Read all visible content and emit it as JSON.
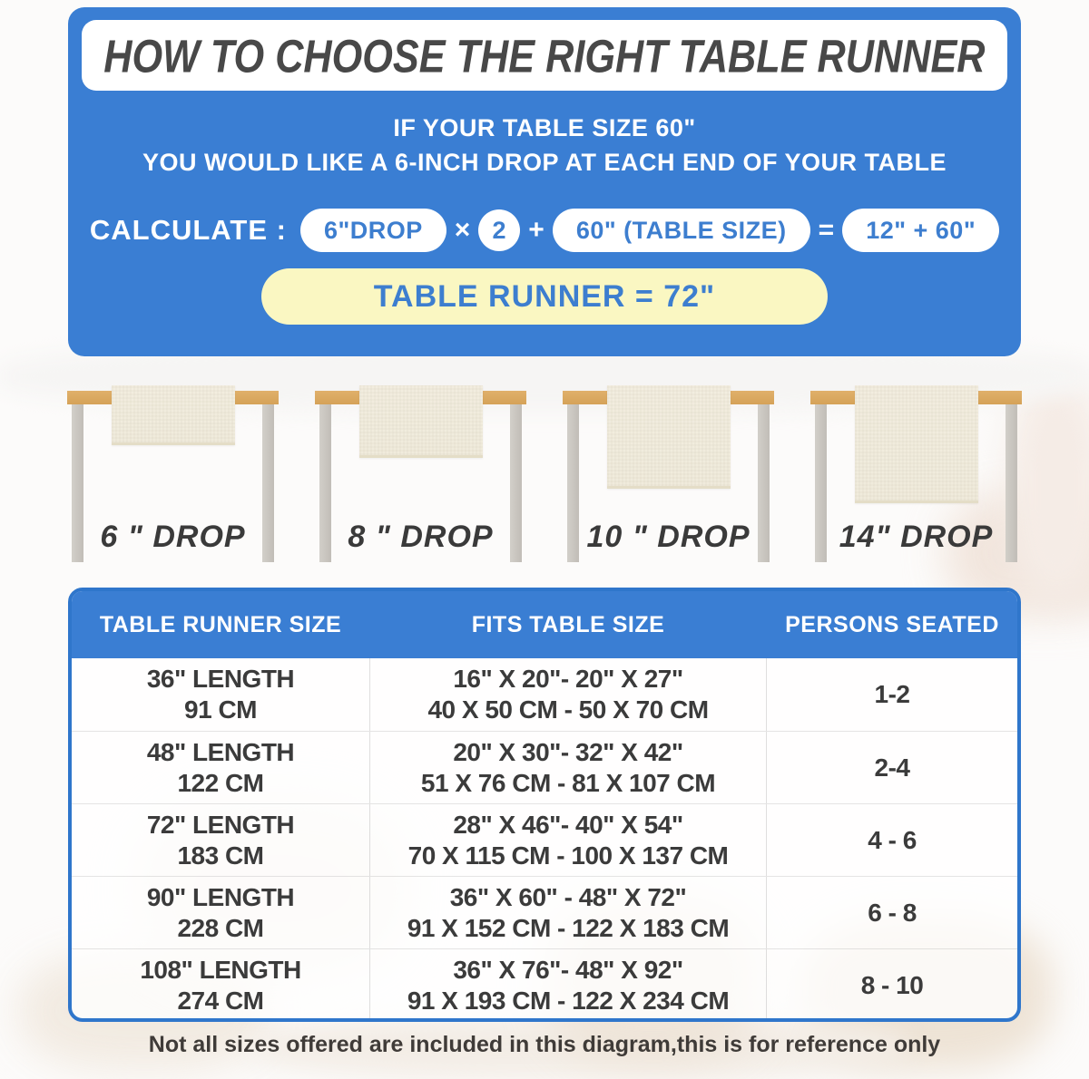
{
  "colors": {
    "panel_blue": "#3A7ED3",
    "pill_text": "#3D7ECF",
    "result_bg": "#FAF7C2",
    "wood": "#DCA95F",
    "leg": "#C8C4BE",
    "runner": "#F0EBDC",
    "title": "#484848",
    "note": "#3F3B38",
    "table_text": "#3B3B3B"
  },
  "header": {
    "title": "HOW TO CHOOSE THE RIGHT TABLE RUNNER",
    "subtitle_line1": "IF YOUR TABLE SIZE 60\"",
    "subtitle_line2": "YOU WOULD LIKE A 6-INCH DROP AT EACH END OF YOUR TABLE",
    "calc": {
      "label": "CALCULATE :",
      "pill_drop": "6\"DROP",
      "op_multiply": "×",
      "pill_factor": "2",
      "op_plus": "+",
      "pill_table_size": "60\" (TABLE SIZE)",
      "op_equals": "=",
      "pill_sum": "12\" + 60\"",
      "result": "TABLE RUNNER = 72\""
    }
  },
  "drops": [
    {
      "label": "6 \" DROP",
      "drop_inches": 6
    },
    {
      "label": "8 \" DROP",
      "drop_inches": 8
    },
    {
      "label": "10 \" DROP",
      "drop_inches": 10
    },
    {
      "label": "14\" DROP",
      "drop_inches": 14
    }
  ],
  "size_table": {
    "headers": [
      "TABLE RUNNER SIZE",
      "FITS TABLE SIZE",
      "PERSONS SEATED"
    ],
    "rows": [
      {
        "runner_in": "36\" LENGTH",
        "runner_cm": "91 CM",
        "fits_in": "16\" X 20\"- 20\" X 27\"",
        "fits_cm": "40 X 50 CM - 50 X 70 CM",
        "persons": "1-2"
      },
      {
        "runner_in": "48\" LENGTH",
        "runner_cm": "122 CM",
        "fits_in": "20\" X 30\"- 32\" X 42\"",
        "fits_cm": "51 X 76 CM - 81 X 107 CM",
        "persons": "2-4"
      },
      {
        "runner_in": "72\" LENGTH",
        "runner_cm": "183 CM",
        "fits_in": "28\" X 46\"- 40\" X 54\"",
        "fits_cm": "70 X 115 CM - 100 X 137 CM",
        "persons": "4 - 6"
      },
      {
        "runner_in": "90\" LENGTH",
        "runner_cm": "228 CM",
        "fits_in": "36\" X 60\" - 48\" X 72\"",
        "fits_cm": "91 X 152 CM - 122 X 183 CM",
        "persons": "6 - 8"
      },
      {
        "runner_in": "108\" LENGTH",
        "runner_cm": "274 CM",
        "fits_in": "36\" X 76\"- 48\" X 92\"",
        "fits_cm": "91 X 193 CM - 122 X 234 CM",
        "persons": "8 - 10"
      }
    ]
  },
  "footer": {
    "note": "Not all sizes offered are included in this diagram,this is for reference only"
  }
}
